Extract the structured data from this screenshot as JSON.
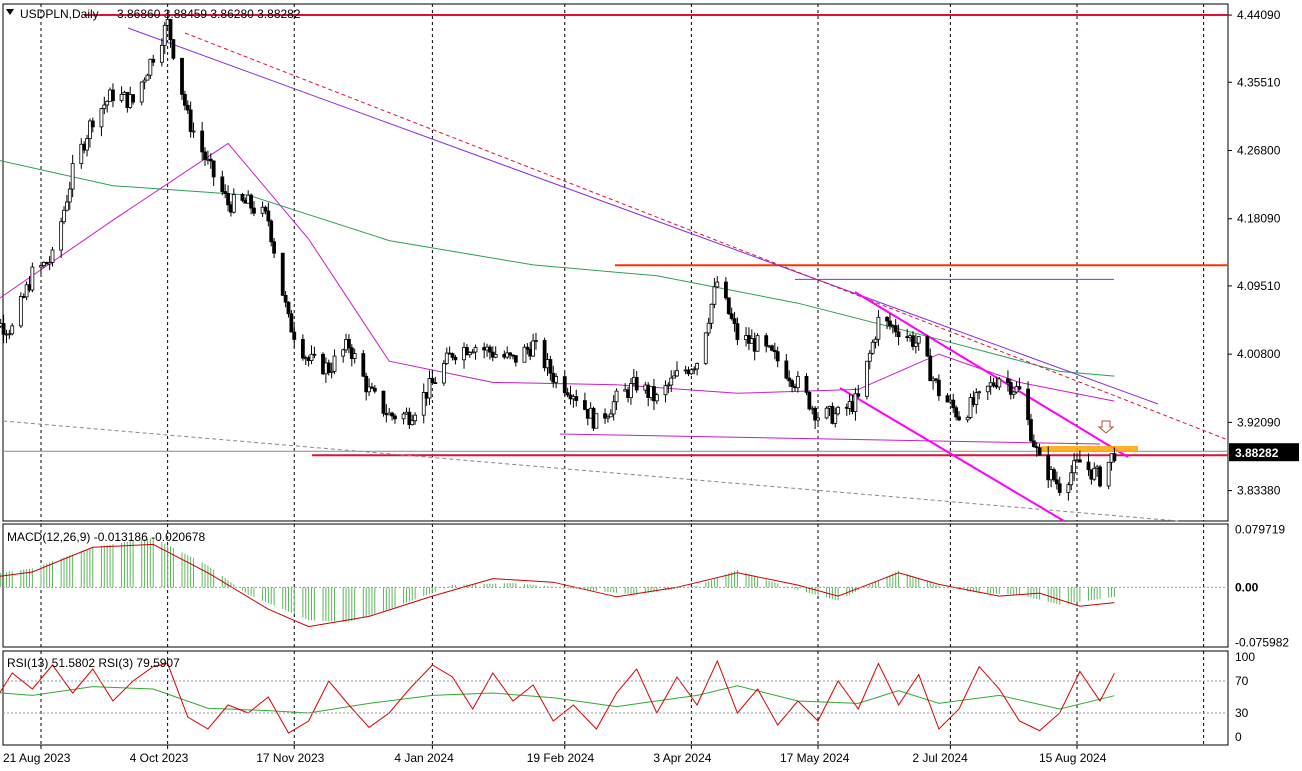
{
  "chart_data": [
    {
      "type": "candlestick",
      "title": "USDPLN,Daily",
      "ohlc_label": "3.86860 3.88459 3.86280 3.88282",
      "y_ticks": [
        "4.44090",
        "4.35510",
        "4.26800",
        "4.18090",
        "4.09510",
        "4.00800",
        "3.92090",
        "3.83380"
      ],
      "ylim": [
        3.795,
        4.455
      ],
      "current_price": 3.88282,
      "current_price_label": "3.88282",
      "date_labels": [
        "21 Aug 2023",
        "4 Oct 2023",
        "17 Nov 2023",
        "4 Jan 2024",
        "19 Feb 2024",
        "3 Apr 2024",
        "17 May 2024",
        "2 Jul 2024",
        "15 Aug 2024"
      ],
      "date_ticks": [
        "2023-08-21",
        "2023-10-04",
        "2023-11-17",
        "2024-01-04",
        "2024-02-19",
        "2024-04-03",
        "2024-05-17",
        "2024-07-02",
        "2024-08-15"
      ],
      "close_series": [
        [
          "2023-07-28",
          4.02
        ],
        [
          "2023-08-04",
          4.05
        ],
        [
          "2023-08-11",
          4.04
        ],
        [
          "2023-08-18",
          4.11
        ],
        [
          "2023-08-25",
          4.13
        ],
        [
          "2023-09-01",
          4.24
        ],
        [
          "2023-09-08",
          4.31
        ],
        [
          "2023-09-15",
          4.34
        ],
        [
          "2023-09-22",
          4.33
        ],
        [
          "2023-09-29",
          4.39
        ],
        [
          "2023-10-04",
          4.43
        ],
        [
          "2023-10-11",
          4.31
        ],
        [
          "2023-10-18",
          4.25
        ],
        [
          "2023-10-25",
          4.2
        ],
        [
          "2023-11-01",
          4.2
        ],
        [
          "2023-11-08",
          4.18
        ],
        [
          "2023-11-15",
          4.05
        ],
        [
          "2023-11-22",
          4.0
        ],
        [
          "2023-11-29",
          3.99
        ],
        [
          "2023-12-06",
          4.02
        ],
        [
          "2023-12-13",
          3.96
        ],
        [
          "2023-12-20",
          3.93
        ],
        [
          "2023-12-27",
          3.93
        ],
        [
          "2024-01-04",
          3.97
        ],
        [
          "2024-01-11",
          4.01
        ],
        [
          "2024-01-18",
          4.02
        ],
        [
          "2024-01-25",
          4.01
        ],
        [
          "2024-02-01",
          4.0
        ],
        [
          "2024-02-08",
          4.02
        ],
        [
          "2024-02-15",
          3.98
        ],
        [
          "2024-02-22",
          3.96
        ],
        [
          "2024-03-01",
          3.92
        ],
        [
          "2024-03-08",
          3.95
        ],
        [
          "2024-03-15",
          3.97
        ],
        [
          "2024-03-22",
          3.95
        ],
        [
          "2024-03-29",
          3.98
        ],
        [
          "2024-04-05",
          4.0
        ],
        [
          "2024-04-12",
          4.1
        ],
        [
          "2024-04-19",
          4.03
        ],
        [
          "2024-04-26",
          4.02
        ],
        [
          "2024-05-03",
          4.0
        ],
        [
          "2024-05-10",
          3.97
        ],
        [
          "2024-05-17",
          3.93
        ],
        [
          "2024-05-24",
          3.93
        ],
        [
          "2024-05-31",
          3.95
        ],
        [
          "2024-06-07",
          4.05
        ],
        [
          "2024-06-14",
          4.04
        ],
        [
          "2024-06-21",
          4.02
        ],
        [
          "2024-06-28",
          3.96
        ],
        [
          "2024-07-05",
          3.93
        ],
        [
          "2024-07-12",
          3.95
        ],
        [
          "2024-07-19",
          3.98
        ],
        [
          "2024-07-26",
          3.96
        ],
        [
          "2024-08-02",
          3.87
        ],
        [
          "2024-08-09",
          3.84
        ],
        [
          "2024-08-16",
          3.87
        ],
        [
          "2024-08-23",
          3.85
        ],
        [
          "2024-08-28",
          3.88282
        ]
      ],
      "ma_slow": [
        [
          "2023-07-28",
          4.263
        ],
        [
          "2023-09-15",
          4.223
        ],
        [
          "2023-11-01",
          4.211
        ],
        [
          "2023-12-20",
          4.153
        ],
        [
          "2024-02-08",
          4.122
        ],
        [
          "2024-03-22",
          4.108
        ],
        [
          "2024-05-10",
          4.073
        ],
        [
          "2024-06-28",
          4.027
        ],
        [
          "2024-08-09",
          3.986
        ],
        [
          "2024-08-28",
          3.98
        ]
      ],
      "ma_fast": [
        [
          "2023-07-28",
          4.055
        ],
        [
          "2023-09-15",
          4.179
        ],
        [
          "2023-10-25",
          4.277
        ],
        [
          "2023-11-22",
          4.155
        ],
        [
          "2023-12-20",
          3.999
        ],
        [
          "2024-01-25",
          3.972
        ],
        [
          "2024-03-08",
          3.969
        ],
        [
          "2024-04-19",
          3.958
        ],
        [
          "2024-05-31",
          3.963
        ],
        [
          "2024-06-28",
          4.008
        ],
        [
          "2024-07-26",
          3.972
        ],
        [
          "2024-08-28",
          3.948
        ]
      ],
      "levels": {
        "top_resistance": 4.4409,
        "resistance": 4.1215,
        "mid_resistance": 4.1035,
        "support": 3.879
      }
    },
    {
      "type": "macd",
      "label": "MACD(12,26,9) -0.013186 -0.020678",
      "y_ticks": [
        "0.079719",
        "0.00",
        "-0.075982"
      ],
      "ylim": [
        -0.082,
        0.087
      ],
      "histogram": [
        [
          "2023-07-28",
          0.014
        ],
        [
          "2023-08-18",
          0.026
        ],
        [
          "2023-09-08",
          0.055
        ],
        [
          "2023-09-29",
          0.068
        ],
        [
          "2023-10-18",
          0.03
        ],
        [
          "2023-11-01",
          -0.01
        ],
        [
          "2023-11-22",
          -0.045
        ],
        [
          "2023-12-06",
          -0.048
        ],
        [
          "2023-12-20",
          -0.03
        ],
        [
          "2024-01-11",
          0.003
        ],
        [
          "2024-02-01",
          0.006
        ],
        [
          "2024-02-22",
          -0.002
        ],
        [
          "2024-03-15",
          -0.01
        ],
        [
          "2024-04-05",
          0.002
        ],
        [
          "2024-04-19",
          0.024
        ],
        [
          "2024-05-10",
          -0.004
        ],
        [
          "2024-05-24",
          -0.018
        ],
        [
          "2024-06-14",
          0.023
        ],
        [
          "2024-06-28",
          0.002
        ],
        [
          "2024-07-12",
          -0.008
        ],
        [
          "2024-07-26",
          -0.01
        ],
        [
          "2024-08-09",
          -0.024
        ],
        [
          "2024-08-28",
          -0.013
        ]
      ],
      "signal": [
        [
          "2023-07-28",
          0.01
        ],
        [
          "2023-08-18",
          0.021
        ],
        [
          "2023-09-08",
          0.055
        ],
        [
          "2023-09-29",
          0.059
        ],
        [
          "2023-10-18",
          0.02
        ],
        [
          "2023-11-08",
          -0.03
        ],
        [
          "2023-11-22",
          -0.054
        ],
        [
          "2023-12-13",
          -0.04
        ],
        [
          "2024-01-04",
          -0.012
        ],
        [
          "2024-01-25",
          0.012
        ],
        [
          "2024-02-15",
          0.007
        ],
        [
          "2024-03-08",
          -0.013
        ],
        [
          "2024-03-29",
          0.0
        ],
        [
          "2024-04-19",
          0.02
        ],
        [
          "2024-05-10",
          0.003
        ],
        [
          "2024-05-24",
          -0.012
        ],
        [
          "2024-06-14",
          0.02
        ],
        [
          "2024-06-28",
          0.004
        ],
        [
          "2024-07-19",
          -0.012
        ],
        [
          "2024-08-02",
          -0.008
        ],
        [
          "2024-08-16",
          -0.026
        ],
        [
          "2024-08-28",
          -0.021
        ]
      ]
    },
    {
      "type": "rsi",
      "label": "RSI(13) 51.5802 RSI(3) 79.5907",
      "y_ticks": [
        "100",
        "70",
        "30",
        "0"
      ],
      "ylim": [
        0,
        100
      ],
      "levels": [
        70,
        30
      ],
      "rsi13": [
        [
          "2023-07-28",
          58
        ],
        [
          "2023-08-18",
          52
        ],
        [
          "2023-09-08",
          63
        ],
        [
          "2023-09-29",
          60
        ],
        [
          "2023-10-18",
          36
        ],
        [
          "2023-11-08",
          33
        ],
        [
          "2023-11-22",
          30
        ],
        [
          "2023-12-13",
          42
        ],
        [
          "2024-01-04",
          52
        ],
        [
          "2024-01-25",
          55
        ],
        [
          "2024-02-15",
          49
        ],
        [
          "2024-03-08",
          38
        ],
        [
          "2024-04-05",
          52
        ],
        [
          "2024-04-19",
          64
        ],
        [
          "2024-05-10",
          45
        ],
        [
          "2024-05-31",
          42
        ],
        [
          "2024-06-14",
          58
        ],
        [
          "2024-06-28",
          42
        ],
        [
          "2024-07-19",
          52
        ],
        [
          "2024-08-09",
          35
        ],
        [
          "2024-08-28",
          51.58
        ]
      ],
      "rsi3": [
        [
          "2023-07-28",
          75
        ],
        [
          "2023-08-04",
          40
        ],
        [
          "2023-08-11",
          80
        ],
        [
          "2023-08-18",
          60
        ],
        [
          "2023-08-25",
          90
        ],
        [
          "2023-09-01",
          55
        ],
        [
          "2023-09-08",
          85
        ],
        [
          "2023-09-15",
          45
        ],
        [
          "2023-09-22",
          70
        ],
        [
          "2023-09-29",
          88
        ],
        [
          "2023-10-04",
          92
        ],
        [
          "2023-10-11",
          25
        ],
        [
          "2023-10-18",
          10
        ],
        [
          "2023-10-25",
          40
        ],
        [
          "2023-11-01",
          30
        ],
        [
          "2023-11-08",
          50
        ],
        [
          "2023-11-15",
          5
        ],
        [
          "2023-11-22",
          20
        ],
        [
          "2023-11-29",
          70
        ],
        [
          "2023-12-06",
          40
        ],
        [
          "2023-12-13",
          12
        ],
        [
          "2023-12-20",
          30
        ],
        [
          "2023-12-27",
          60
        ],
        [
          "2024-01-04",
          90
        ],
        [
          "2024-01-11",
          75
        ],
        [
          "2024-01-18",
          35
        ],
        [
          "2024-01-25",
          80
        ],
        [
          "2024-02-01",
          45
        ],
        [
          "2024-02-08",
          65
        ],
        [
          "2024-02-15",
          20
        ],
        [
          "2024-02-22",
          40
        ],
        [
          "2024-03-01",
          10
        ],
        [
          "2024-03-08",
          55
        ],
        [
          "2024-03-15",
          85
        ],
        [
          "2024-03-22",
          30
        ],
        [
          "2024-03-29",
          75
        ],
        [
          "2024-04-05",
          40
        ],
        [
          "2024-04-12",
          95
        ],
        [
          "2024-04-19",
          30
        ],
        [
          "2024-04-26",
          60
        ],
        [
          "2024-05-03",
          15
        ],
        [
          "2024-05-10",
          45
        ],
        [
          "2024-05-17",
          20
        ],
        [
          "2024-05-24",
          70
        ],
        [
          "2024-05-31",
          35
        ],
        [
          "2024-06-07",
          92
        ],
        [
          "2024-06-14",
          40
        ],
        [
          "2024-06-21",
          78
        ],
        [
          "2024-06-28",
          10
        ],
        [
          "2024-07-05",
          35
        ],
        [
          "2024-07-12",
          88
        ],
        [
          "2024-07-19",
          60
        ],
        [
          "2024-07-26",
          20
        ],
        [
          "2024-08-02",
          8
        ],
        [
          "2024-08-09",
          30
        ],
        [
          "2024-08-16",
          82
        ],
        [
          "2024-08-23",
          45
        ],
        [
          "2024-08-28",
          79.59
        ]
      ]
    }
  ]
}
